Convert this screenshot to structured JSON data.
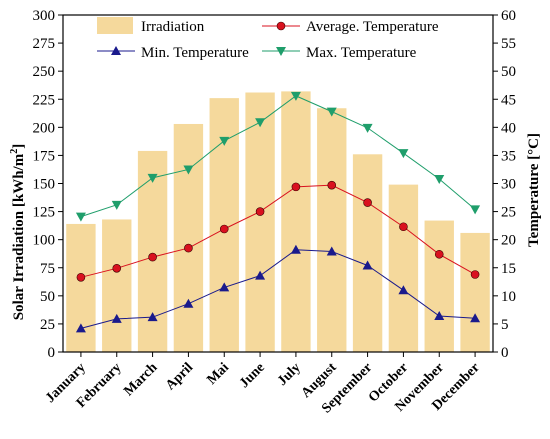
{
  "chart_data": {
    "type": "bar",
    "categories": [
      "January",
      "February",
      "March",
      "April",
      "Mai",
      "June",
      "July",
      "August",
      "September",
      "October",
      "November",
      "December"
    ],
    "bars": {
      "name": "Irradiation",
      "values": [
        114,
        118,
        179,
        203,
        226,
        231,
        232,
        217,
        176,
        149,
        117,
        106
      ],
      "color": "#F5D99C"
    },
    "series": [
      {
        "name": "Average. Temperature",
        "values": [
          13.3,
          14.9,
          16.9,
          18.5,
          21.9,
          25.0,
          29.4,
          29.7,
          26.6,
          22.3,
          17.4,
          13.8
        ],
        "color": "#d9111f",
        "marker": "circle"
      },
      {
        "name": "Min. Temperature",
        "values": [
          4.2,
          5.9,
          6.2,
          8.6,
          11.5,
          13.6,
          18.2,
          17.9,
          15.4,
          11.0,
          6.4,
          6.0
        ],
        "color": "#1a1a8c",
        "marker": "triangle-up"
      },
      {
        "name": "Max. Temperature",
        "values": [
          24.1,
          26.2,
          31.0,
          32.5,
          37.6,
          40.9,
          45.6,
          42.8,
          39.9,
          35.4,
          30.8,
          25.4
        ],
        "color": "#1f9e6b",
        "marker": "triangle-down"
      }
    ],
    "ylabel_left": "Solar Irradiation [kWh/m²]",
    "ylabel_left_base": "Solar Irradiation [kWh/m",
    "ylabel_left_sup": "2",
    "ylabel_left_end": "]",
    "ylabel_right": "Temperature [°C]",
    "ylim_left": [
      0,
      300
    ],
    "ylim_right": [
      0,
      60
    ],
    "yticks_left": [
      0,
      25,
      50,
      75,
      100,
      125,
      150,
      175,
      200,
      225,
      250,
      275,
      300
    ],
    "yticks_right": [
      0,
      5,
      10,
      15,
      20,
      25,
      30,
      35,
      40,
      45,
      50,
      55,
      60
    ],
    "legend": {
      "position": "top",
      "entries": [
        "Irradiation",
        "Average. Temperature",
        "Min. Temperature",
        "Max. Temperature"
      ]
    }
  }
}
